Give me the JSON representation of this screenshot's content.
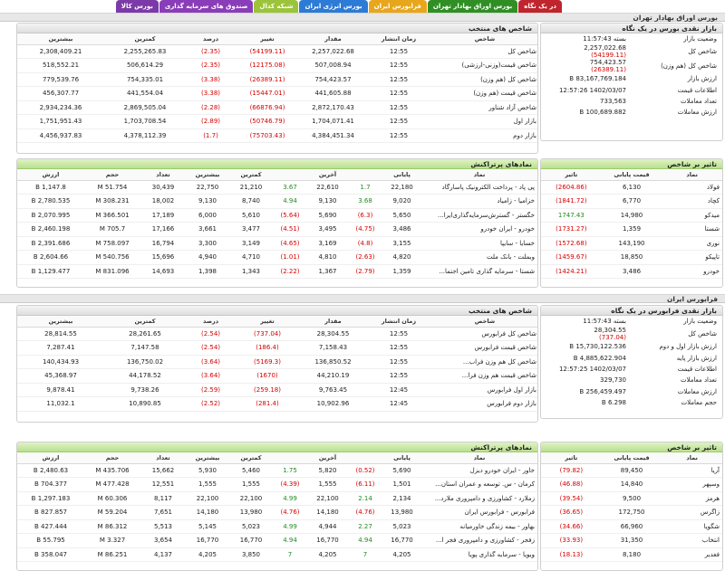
{
  "tabs": [
    {
      "label": "در یک نگاه",
      "color": "#c0242d"
    },
    {
      "label": "بورس اوراق بهادار تهران",
      "color": "#2f8f24"
    },
    {
      "label": "فرابورس ایران",
      "color": "#e8a61c"
    },
    {
      "label": "بورس انرژی ایران",
      "color": "#2c7bd6"
    },
    {
      "label": "شبکه کدال",
      "color": "#9bc43a"
    },
    {
      "label": "صندوق های سرمایه گذاری",
      "color": "#8a3db8"
    },
    {
      "label": "بورس کالا",
      "color": "#7b3aa8"
    }
  ],
  "tse": {
    "title": "بورس اوراق بهادار تهران",
    "summary": {
      "title": "بازار نقدی بورس در یک نگاه",
      "rows": [
        {
          "label": "وضعیت بازار",
          "value": "بسته 11:57:43"
        },
        {
          "label": "شاخص کل",
          "value": "2,257,022.68",
          "delta": "(54199.11)"
        },
        {
          "label": "شاخص کل (هم وزن)",
          "value": "754,423.57",
          "delta": "(26389.11)"
        },
        {
          "label": "ارزش بازار",
          "value": "83,167,769.184 B"
        },
        {
          "label": "اطلاعات قیمت",
          "value": "1402/03/07 12:57:26"
        },
        {
          "label": "تعداد معاملات",
          "value": "733,563"
        },
        {
          "label": "ارزش معاملات",
          "value": "100,689.882 B"
        }
      ]
    },
    "indices": {
      "title": "شاخص های منتخب",
      "headers": [
        "شاخص",
        "زمان انتشار",
        "مقدار",
        "تغییر",
        "درصد",
        "کمترین",
        "بیشترین"
      ],
      "rows": [
        [
          "شاخص کل",
          "12:55",
          "2,257,022.68",
          "(54199.11)",
          "(2.35)",
          "2,255,265.83",
          "2,308,409.21"
        ],
        [
          "شاخص قیمت(وزنی-ارزشی)",
          "12:55",
          "507,008.94",
          "(12175.08)",
          "(2.35)",
          "506,614.29",
          "518,552.21"
        ],
        [
          "شاخص کل (هم وزن)",
          "12:55",
          "754,423.57",
          "(26389.11)",
          "(3.38)",
          "754,335.01",
          "779,539.76"
        ],
        [
          "شاخص قیمت (هم وزن)",
          "12:55",
          "441,605.88",
          "(15447.01)",
          "(3.38)",
          "441,554.04",
          "456,307.77"
        ],
        [
          "شاخص آزاد شناور",
          "12:55",
          "2,872,170.43",
          "(66876.94)",
          "(2.28)",
          "2,869,505.04",
          "2,934,234.36"
        ],
        [
          "بازار اول",
          "12:55",
          "1,704,071.41",
          "(50746.79)",
          "(2.89)",
          "1,703,708.54",
          "1,751,951.43"
        ],
        [
          "بازار دوم",
          "12:55",
          "4,384,451.34",
          "(75703.43)",
          "(1.7)",
          "4,378,112.39",
          "4,456,937.83"
        ]
      ]
    },
    "impact": {
      "title": "تاثیر بر شاخص",
      "headers": [
        "نماد",
        "قیمت پایانی",
        "تاثیر"
      ],
      "rows": [
        [
          "فولاد",
          "6,130",
          "(2604.86)"
        ],
        [
          "کچاد",
          "6,770",
          "(1841.72)"
        ],
        [
          "میدکو",
          "14,980",
          "1747.43"
        ],
        [
          "شستا",
          "1,359",
          "(1731.27)"
        ],
        [
          "نوری",
          "143,190",
          "(1572.68)"
        ],
        [
          "تاپیکو",
          "18,850",
          "(1459.67)"
        ],
        [
          "خودرو",
          "3,486",
          "(1424.21)"
        ]
      ]
    },
    "active": {
      "title": "نمادهای پرتراکنش",
      "headers": [
        "نماد",
        "پایانی",
        "",
        "آخرین",
        "",
        "کمترین",
        "بیشترین",
        "تعداد",
        "حجم",
        "ارزش"
      ],
      "rows": [
        [
          "پی پاد - پرداخت الکترونیک پاسارگاد",
          "22,180",
          "1.7",
          "22,610",
          "3.67",
          "21,210",
          "22,750",
          "30,439",
          "51.754 M",
          "1,147.8 B"
        ],
        [
          "خزامیا - زامیاد",
          "9,020",
          "3.68",
          "9,130",
          "4.94",
          "8,740",
          "9,130",
          "18,002",
          "308.231 M",
          "2,780.535 B"
        ],
        [
          "خگستر - گسترش‌سرمایه‌گذاری‌ایرا...",
          "5,650",
          "(6.3)",
          "5,690",
          "(5.64)",
          "5,610",
          "6,000",
          "17,189",
          "366.501 M",
          "2,070.995 B"
        ],
        [
          "خودرو - ایران‌ خودرو",
          "3,486",
          "(4.75)",
          "3,495",
          "(4.51)",
          "3,477",
          "3,661",
          "17,166",
          "705.7 M",
          "2,460.198 B"
        ],
        [
          "خسایا - سایپا",
          "3,155",
          "(4.8)",
          "3,169",
          "(4.65)",
          "3,149",
          "3,300",
          "16,794",
          "758.097 M",
          "2,391.686 B"
        ],
        [
          "وبملت - بانک ملت",
          "4,820",
          "(2.63)",
          "4,810",
          "(1.01)",
          "4,710",
          "4,940",
          "15,696",
          "540.756 M",
          "2,604.66 B"
        ],
        [
          "شستا - سرمایه گذاری تامین اجتما...",
          "1,359",
          "(2.79)",
          "1,367",
          "(2.22)",
          "1,343",
          "1,398",
          "14,693",
          "831.096 M",
          "1,129.477 B"
        ]
      ]
    }
  },
  "ifb": {
    "title": "فرابورس ایران",
    "summary": {
      "title": "بازار نقدی فرابورس در یک نگاه",
      "rows": [
        {
          "label": "وضعیت بازار",
          "value": "بسته 11:57:43"
        },
        {
          "label": "شاخص کل",
          "value": "28,304.55",
          "delta": "(737.04)"
        },
        {
          "label": "ارزش بازار اول و دوم",
          "value": "15,730,122.536 B"
        },
        {
          "label": "ارزش بازار پایه",
          "value": "4,885,622.904 B"
        },
        {
          "label": "اطلاعات قیمت",
          "value": "1402/03/07 12:57:25"
        },
        {
          "label": "تعداد معاملات",
          "value": "329,730"
        },
        {
          "label": "ارزش معاملات",
          "value": "256,459.497 B"
        },
        {
          "label": "حجم معاملات",
          "value": "6.298 B"
        }
      ]
    },
    "indices": {
      "title": "شاخص های منتخب",
      "headers": [
        "شاخص",
        "زمان انتشار",
        "مقدار",
        "تغییر",
        "درصد",
        "کمترین",
        "بیشترین"
      ],
      "rows": [
        [
          "شاخص کل فرابورس",
          "12:55",
          "28,304.55",
          "(737.04)",
          "(2.54)",
          "28,261.65",
          "28,814.55"
        ],
        [
          "شاخص قیمت فرابورس",
          "12:55",
          "7,158.43",
          "(186.4)",
          "(2.54)",
          "7,147.58",
          "7,287.41"
        ],
        [
          "شاخص کل هم وزن فراب...",
          "12:55",
          "136,850.52",
          "(5169.3)",
          "(3.64)",
          "136,750.02",
          "140,434.93"
        ],
        [
          "شاخص قیمت هم وزن فرا...",
          "12:55",
          "44,210.19",
          "(1670)",
          "(3.64)",
          "44,178.52",
          "45,368.97"
        ],
        [
          "بازار اول فرابورس",
          "12:45",
          "9,763.45",
          "(259.18)",
          "(2.59)",
          "9,738.26",
          "9,878.41"
        ],
        [
          "بازار دوم فرابورس",
          "12:45",
          "10,902.96",
          "(281.4)",
          "(2.52)",
          "10,890.85",
          "11,032.1"
        ]
      ]
    },
    "impact": {
      "title": "تاثیر بر شاخص",
      "headers": [
        "نماد",
        "قیمت پایانی",
        "تاثیر"
      ],
      "rows": [
        [
          "آریا",
          "89,450",
          "(79.82)"
        ],
        [
          "وسپهر",
          "14,840",
          "(46.88)"
        ],
        [
          "هرمز",
          "9,500",
          "(39.54)"
        ],
        [
          "زاگرس",
          "172,750",
          "(36.65)"
        ],
        [
          "شگویا",
          "66,960",
          "(34.66)"
        ],
        [
          "انتخاب",
          "31,350",
          "(33.93)"
        ],
        [
          "فغدیر",
          "8,180",
          "(18.13)"
        ]
      ]
    },
    "active": {
      "title": "نمادهای پرتراکنش",
      "headers": [
        "نماد",
        "پایانی",
        "",
        "آخرین",
        "",
        "کمترین",
        "بیشترین",
        "تعداد",
        "حجم",
        "ارزش"
      ],
      "rows": [
        [
          "خاور - ایران‌ خودرو دیزل",
          "5,690",
          "(0.52)",
          "5,820",
          "1.75",
          "5,460",
          "5,930",
          "15,662",
          "435.706 M",
          "2,480.63 B"
        ],
        [
          "کرمان - س. توسعه و عمران استان...",
          "1,501",
          "(6.11)",
          "1,555",
          "(4.39)",
          "1,555",
          "1,555",
          "12,551",
          "477.428 M",
          "704.377 B"
        ],
        [
          "زملارد - کشاورزی و دامپروری ملارد...",
          "2,134",
          "2.14",
          "22,100",
          "4.99",
          "22,100",
          "22,100",
          "8,117",
          "60.306 M",
          "1,297.183 B"
        ],
        [
          "فرابورس - فرابورس ایران",
          "13,980",
          "(4.76)",
          "14,180",
          "(4.76)",
          "13,980",
          "14,180",
          "7,651",
          "59.204 M",
          "827.857 B"
        ],
        [
          "بهاور - بیمه زندگی خاورمیانه",
          "5,023",
          "2.27",
          "4,944",
          "4.99",
          "5,023",
          "5,145",
          "5,513",
          "86.312 M",
          "427.444 B"
        ],
        [
          "زفجر - کشاورزی و دامپروری فجر ا...",
          "16,770",
          "4.94",
          "16,770",
          "4.94",
          "16,770",
          "16,770",
          "3,654",
          "3.327 M",
          "55.795 B"
        ],
        [
          "ویویا - سرمایه گذاری پویا",
          "4,205",
          "7",
          "4,205",
          "7",
          "3,850",
          "4,205",
          "4,137",
          "86.251 M",
          "358.047 B"
        ]
      ]
    }
  }
}
